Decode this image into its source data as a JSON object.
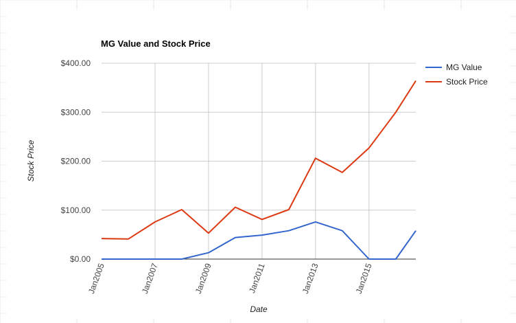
{
  "chart_data": {
    "type": "line",
    "title": "MG Value and Stock Price",
    "xlabel": "Date",
    "ylabel": "Stock Price",
    "x": [
      "2005-01",
      "2006-01",
      "2007-01",
      "2008-01",
      "2009-01",
      "2010-01",
      "2011-01",
      "2012-01",
      "2013-01",
      "2014-01",
      "2015-01",
      "2016-01",
      "2016-10"
    ],
    "x_tick_labels": [
      "Jan2005",
      "Jan2007",
      "Jan2009",
      "Jan2011",
      "Jan2013",
      "Jan2015"
    ],
    "y_tick_labels": [
      "$0.00",
      "$100.00",
      "$200.00",
      "$300.00",
      "$400.00"
    ],
    "ylim": [
      0,
      400
    ],
    "grid": true,
    "legend": "right",
    "series": [
      {
        "name": "MG Value",
        "color": "#3366cc",
        "values": [
          0,
          0,
          0,
          0,
          13,
          44,
          49,
          58,
          76,
          58,
          0,
          0,
          58
        ]
      },
      {
        "name": "Stock Price",
        "color": "#dc3912",
        "values": [
          42,
          41,
          76,
          101,
          53,
          106,
          81,
          101,
          206,
          177,
          227,
          300,
          364
        ]
      }
    ]
  }
}
